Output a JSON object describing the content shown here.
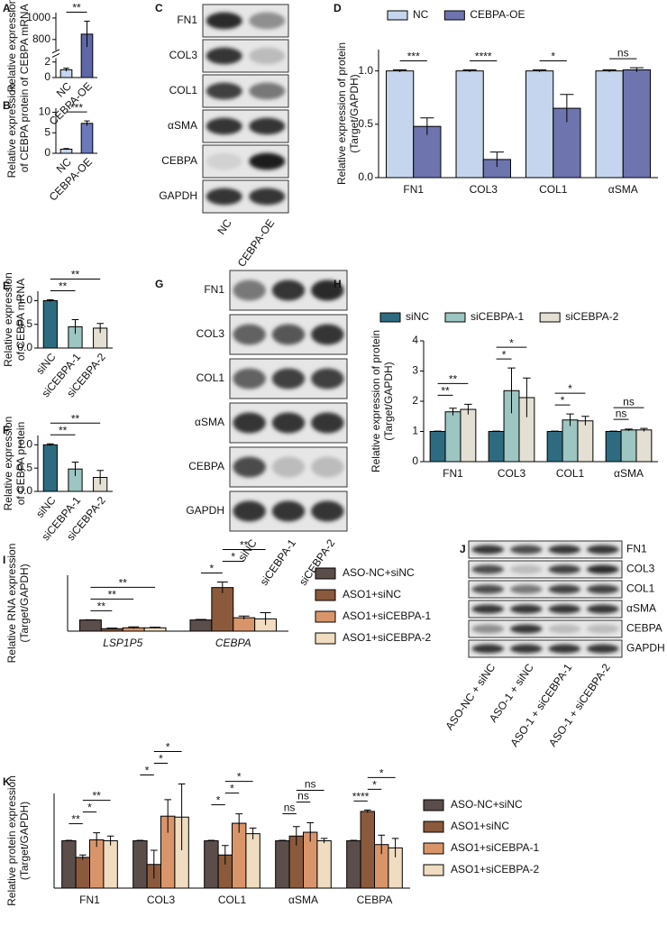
{
  "chart_data": [
    {
      "type": "bar",
      "panel": "A",
      "ylabel": [
        "Relative expression",
        "of CEBPA mRNA"
      ],
      "categories": [
        "NC",
        "CEBPA-OE"
      ],
      "values": [
        1,
        850
      ],
      "errors": [
        0.2,
        120
      ],
      "colors": [
        "#c5d5ee",
        "#5f68a6"
      ],
      "ylim": [
        0,
        1050
      ],
      "axis_break": [
        2.5,
        700
      ],
      "yticks": [
        0,
        2,
        800,
        1000
      ],
      "significance": [
        {
          "from": "NC",
          "to": "CEBPA-OE",
          "label": "**"
        }
      ]
    },
    {
      "type": "bar",
      "panel": "B",
      "ylabel": [
        "Relative expression",
        "of CEBPA protein"
      ],
      "categories": [
        "NC",
        "CEBPA-OE"
      ],
      "values": [
        1,
        7.3
      ],
      "errors": [
        0.15,
        0.6
      ],
      "colors": [
        "#c5d5ee",
        "#6b78bb"
      ],
      "ylim": [
        0,
        11
      ],
      "yticks": [
        0,
        5,
        10
      ],
      "significance": [
        {
          "from": "NC",
          "to": "CEBPA-OE",
          "label": "***"
        }
      ]
    },
    {
      "type": "blot",
      "panel": "C",
      "rows": [
        "FN1",
        "COL3",
        "COL1",
        "αSMA",
        "CEBPA",
        "GAPDH"
      ],
      "lanes": [
        "NC",
        "CEBPA-OE"
      ]
    },
    {
      "type": "bar",
      "panel": "D",
      "ylabel": [
        "Relative expression of protein",
        "(Target/GAPDH)"
      ],
      "categories": [
        "FN1",
        "COL3",
        "COL1",
        "αSMA"
      ],
      "legend": "top",
      "series": [
        {
          "name": "NC",
          "color": "#c5d5ee",
          "values": [
            1,
            1,
            1,
            1
          ],
          "errors": [
            0.01,
            0.01,
            0.01,
            0.01
          ]
        },
        {
          "name": "CEBPA-OE",
          "color": "#6d74ae",
          "values": [
            0.48,
            0.17,
            0.65,
            1.01
          ],
          "errors": [
            0.08,
            0.07,
            0.13,
            0.02
          ]
        }
      ],
      "ylim": [
        0,
        1.2
      ],
      "yticks": [
        {
          "value": 0,
          "label": "0.0"
        },
        {
          "value": 0.5,
          "label": "0.5"
        },
        {
          "value": 1,
          "label": "1.0"
        }
      ],
      "significance": [
        {
          "category": "FN1",
          "from": "NC",
          "to": "CEBPA-OE",
          "label": "***"
        },
        {
          "category": "COL3",
          "from": "NC",
          "to": "CEBPA-OE",
          "label": "****"
        },
        {
          "category": "COL1",
          "from": "NC",
          "to": "CEBPA-OE",
          "label": "*"
        },
        {
          "category": "αSMA",
          "from": "NC",
          "to": "CEBPA-OE",
          "label": "ns"
        }
      ]
    },
    {
      "type": "bar",
      "panel": "E",
      "ylabel": [
        "Relative expression",
        "of CEBPA mRNA"
      ],
      "categories": [
        "siNC",
        "siCEBPA-1",
        "siCEBPA-2"
      ],
      "values": [
        1,
        0.45,
        0.42
      ],
      "errors": [
        0.02,
        0.15,
        0.1
      ],
      "colors": [
        "#2e6b80",
        "#9dc5c2",
        "#e3dfd2"
      ],
      "ylim": [
        0,
        1.2
      ],
      "yticks": [
        {
          "value": 0,
          "label": "0.0"
        },
        {
          "value": 0.5,
          "label": "0.5"
        },
        {
          "value": 1,
          "label": "1.0"
        }
      ],
      "significance": [
        {
          "from": "siNC",
          "to": "siCEBPA-1",
          "label": "**"
        },
        {
          "from": "siNC",
          "to": "siCEBPA-2",
          "label": "**"
        }
      ]
    },
    {
      "type": "bar",
      "panel": "F",
      "ylabel": [
        "Relative expression",
        "of CEBPA protein"
      ],
      "categories": [
        "siNC",
        "siCEBPA-1",
        "siCEBPA-2"
      ],
      "values": [
        1,
        0.48,
        0.3
      ],
      "errors": [
        0.02,
        0.15,
        0.15
      ],
      "colors": [
        "#2e6b80",
        "#9dc5c2",
        "#e3dfd2"
      ],
      "ylim": [
        0,
        1.2
      ],
      "yticks": [
        {
          "value": 0,
          "label": "0.0"
        },
        {
          "value": 0.5,
          "label": "0.5"
        },
        {
          "value": 1,
          "label": "1.0"
        }
      ],
      "significance": [
        {
          "from": "siNC",
          "to": "siCEBPA-1",
          "label": "**"
        },
        {
          "from": "siNC",
          "to": "siCEBPA-2",
          "label": "**"
        }
      ]
    },
    {
      "type": "blot",
      "panel": "G",
      "rows": [
        "FN1",
        "COL3",
        "COL1",
        "αSMA",
        "CEBPA",
        "GAPDH"
      ],
      "lanes": [
        "siNC",
        "siCEBPA-1",
        "siCEBPA-2"
      ]
    },
    {
      "type": "bar",
      "panel": "H",
      "ylabel": [
        "Relative expression of protein",
        "(Target/GAPDH)"
      ],
      "categories": [
        "FN1",
        "COL3",
        "COL1",
        "αSMA"
      ],
      "legend": "top",
      "series": [
        {
          "name": "siNC",
          "color": "#2e6b80",
          "values": [
            1,
            1,
            1,
            1
          ],
          "errors": [
            0.01,
            0.01,
            0.01,
            0.01
          ]
        },
        {
          "name": "siCEBPA-1",
          "color": "#9dc5c2",
          "values": [
            1.65,
            2.35,
            1.38,
            1.05
          ],
          "errors": [
            0.12,
            0.75,
            0.2,
            0.03
          ]
        },
        {
          "name": "siCEBPA-2",
          "color": "#e3dfd2",
          "values": [
            1.73,
            2.12,
            1.35,
            1.05
          ],
          "errors": [
            0.17,
            0.65,
            0.15,
            0.05
          ]
        }
      ],
      "ylim": [
        0,
        4
      ],
      "yticks": [
        0,
        1,
        2,
        3,
        4
      ],
      "significance": [
        {
          "category": "FN1",
          "from": "siNC",
          "to": "siCEBPA-1",
          "label": "**"
        },
        {
          "category": "FN1",
          "from": "siNC",
          "to": "siCEBPA-2",
          "label": "**"
        },
        {
          "category": "COL3",
          "from": "siNC",
          "to": "siCEBPA-1",
          "label": "*"
        },
        {
          "category": "COL3",
          "from": "siNC",
          "to": "siCEBPA-2",
          "label": "*"
        },
        {
          "category": "COL1",
          "from": "siNC",
          "to": "siCEBPA-1",
          "label": "*"
        },
        {
          "category": "COL1",
          "from": "siNC",
          "to": "siCEBPA-2",
          "label": "*"
        },
        {
          "category": "αSMA",
          "from": "siNC",
          "to": "siCEBPA-1",
          "label": "ns"
        },
        {
          "category": "αSMA",
          "from": "siNC",
          "to": "siCEBPA-2",
          "label": "ns"
        }
      ]
    },
    {
      "type": "bar",
      "panel": "I",
      "ylabel": [
        "Relative RNA expression",
        "(Target/GAPDH)"
      ],
      "categories": [
        "LSP1P5",
        "CEBPA"
      ],
      "legend": "right",
      "series": [
        {
          "name": "ASO-NC+siNC",
          "color": "#5a4d4a",
          "values": [
            1,
            1
          ],
          "errors": [
            0.02,
            0.05
          ]
        },
        {
          "name": "ASO1+siNC",
          "color": "#8b5a3c",
          "values": [
            0.22,
            3.9
          ],
          "errors": [
            0.05,
            0.5
          ]
        },
        {
          "name": "ASO1+siCEBPA-1",
          "color": "#d9956a",
          "values": [
            0.3,
            1.2
          ],
          "errors": [
            0.08,
            0.15
          ]
        },
        {
          "name": "ASO1+siCEBPA-2",
          "color": "#f0dcc0",
          "values": [
            0.3,
            1.1
          ],
          "errors": [
            0.05,
            0.55
          ]
        }
      ],
      "ylim": [
        0,
        5
      ],
      "significance": [
        {
          "category": "LSP1P5",
          "from": "ASO-NC+siNC",
          "to": "ASO1+siNC",
          "label": "**"
        },
        {
          "category": "LSP1P5",
          "from": "ASO-NC+siNC",
          "to": "ASO1+siCEBPA-1",
          "label": "**"
        },
        {
          "category": "LSP1P5",
          "from": "ASO-NC+siNC",
          "to": "ASO1+siCEBPA-2",
          "label": "**"
        },
        {
          "category": "CEBPA",
          "from": "ASO-NC+siNC",
          "to": "ASO1+siNC",
          "label": "*"
        },
        {
          "category": "CEBPA",
          "from": "ASO1+siNC",
          "to": "ASO1+siCEBPA-1",
          "label": "*"
        },
        {
          "category": "CEBPA",
          "from": "ASO1+siNC",
          "to": "ASO1+siCEBPA-2",
          "label": "**"
        }
      ]
    },
    {
      "type": "blot",
      "panel": "J",
      "rows": [
        "FN1",
        "COL3",
        "COL1",
        "αSMA",
        "CEBPA",
        "GAPDH"
      ],
      "lanes": [
        "ASO-NC + siNC",
        "ASO-1 + siNC",
        "ASO-1 + siCEBPA-1",
        "ASO-1 + siCEBPA-2"
      ]
    },
    {
      "type": "bar",
      "panel": "K",
      "ylabel": [
        "Relative protein expression",
        "(Target/GAPDH)"
      ],
      "categories": [
        "FN1",
        "COL3",
        "COL1",
        "αSMA",
        "CEBPA"
      ],
      "legend": "right",
      "series": [
        {
          "name": "ASO-NC+siNC",
          "color": "#5a4d4a",
          "values": [
            1,
            1,
            1,
            1,
            1
          ],
          "errors": [
            0.01,
            0.01,
            0.01,
            0.01,
            0.01
          ]
        },
        {
          "name": "ASO1+siNC",
          "color": "#8b5a3c",
          "values": [
            0.65,
            0.5,
            0.7,
            1.1,
            1.62
          ],
          "errors": [
            0.05,
            0.3,
            0.2,
            0.2,
            0.03
          ]
        },
        {
          "name": "ASO1+siCEBPA-1",
          "color": "#d9956a",
          "values": [
            1.02,
            1.52,
            1.37,
            1.18,
            0.92
          ],
          "errors": [
            0.15,
            0.35,
            0.2,
            0.2,
            0.2
          ]
        },
        {
          "name": "ASO1+siCEBPA-2",
          "color": "#f0dcc0",
          "values": [
            1,
            1.5,
            1.15,
            1,
            0.85
          ],
          "errors": [
            0.1,
            0.7,
            0.12,
            0.05,
            0.2
          ]
        }
      ],
      "ylim": [
        0,
        2
      ],
      "significance": [
        {
          "category": "FN1",
          "from": "ASO-NC+siNC",
          "to": "ASO1+siNC",
          "label": "**"
        },
        {
          "category": "FN1",
          "from": "ASO1+siNC",
          "to": "ASO1+siCEBPA-1",
          "label": "*"
        },
        {
          "category": "FN1",
          "from": "ASO1+siNC",
          "to": "ASO1+siCEBPA-2",
          "label": "**"
        },
        {
          "category": "COL3",
          "from": "ASO-NC+siNC",
          "to": "ASO1+siNC",
          "label": "*"
        },
        {
          "category": "COL3",
          "from": "ASO1+siNC",
          "to": "ASO1+siCEBPA-1",
          "label": "*"
        },
        {
          "category": "COL3",
          "from": "ASO1+siNC",
          "to": "ASO1+siCEBPA-2",
          "label": "*"
        },
        {
          "category": "COL1",
          "from": "ASO-NC+siNC",
          "to": "ASO1+siNC",
          "label": "*"
        },
        {
          "category": "COL1",
          "from": "ASO1+siNC",
          "to": "ASO1+siCEBPA-1",
          "label": "*"
        },
        {
          "category": "COL1",
          "from": "ASO1+siNC",
          "to": "ASO1+siCEBPA-2",
          "label": "*"
        },
        {
          "category": "αSMA",
          "from": "ASO-NC+siNC",
          "to": "ASO1+siNC",
          "label": "ns"
        },
        {
          "category": "αSMA",
          "from": "ASO1+siNC",
          "to": "ASO1+siCEBPA-1",
          "label": "ns"
        },
        {
          "category": "αSMA",
          "from": "ASO1+siNC",
          "to": "ASO1+siCEBPA-2",
          "label": "ns"
        },
        {
          "category": "CEBPA",
          "from": "ASO-NC+siNC",
          "to": "ASO1+siNC",
          "label": "****"
        },
        {
          "category": "CEBPA",
          "from": "ASO1+siNC",
          "to": "ASO1+siCEBPA-1",
          "label": "*"
        },
        {
          "category": "CEBPA",
          "from": "ASO1+siNC",
          "to": "ASO1+siCEBPA-2",
          "label": "*"
        }
      ]
    }
  ]
}
